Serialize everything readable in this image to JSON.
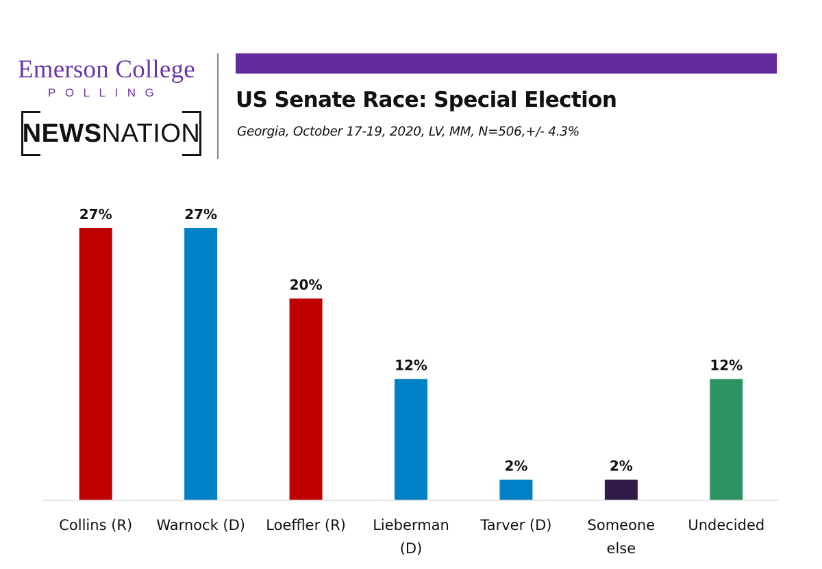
{
  "branding": {
    "pollster_name": "Emerson College",
    "pollster_sub": "POLLING",
    "partner_bold": "NEWS",
    "partner_regular": "NATION",
    "header_bar_color": "#632a9c",
    "logo_color": "#6b35a5"
  },
  "chart_data": {
    "type": "bar",
    "title": "US Senate Race: Special Election",
    "subtitle": "Georgia, October 17-19, 2020, LV, MM, N=506,+/-  4.3%",
    "xlabel": "",
    "ylabel": "",
    "ylim": [
      0,
      27
    ],
    "grid": false,
    "legend": "none",
    "categories": [
      [
        "Collins (R)"
      ],
      [
        "Warnock (D)"
      ],
      [
        "Loeffler (R)"
      ],
      [
        "Lieberman",
        "(D)"
      ],
      [
        "Tarver (D)"
      ],
      [
        "Someone",
        "else"
      ],
      [
        "Undecided"
      ]
    ],
    "values": [
      27,
      27,
      20,
      12,
      2,
      2,
      12
    ],
    "value_labels": [
      "27%",
      "27%",
      "20%",
      "12%",
      "2%",
      "2%",
      "12%"
    ],
    "colors": [
      "#c00000",
      "#0081c6",
      "#c00000",
      "#0081c6",
      "#0081c6",
      "#311b48",
      "#2e9363"
    ],
    "unit": "%"
  }
}
